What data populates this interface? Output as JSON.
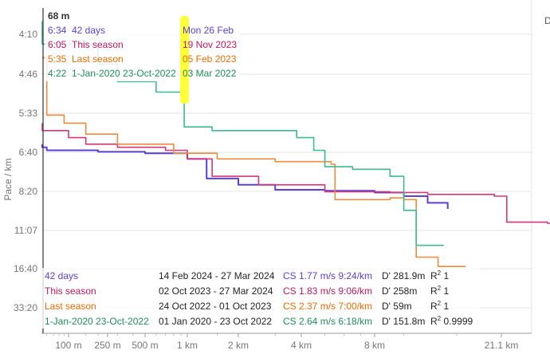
{
  "chart_data": {
    "type": "line",
    "ylabel": "Pace / km",
    "y_ticks": [
      "4:10",
      "4:46",
      "5:33",
      "6:40",
      "8:20",
      "11:07",
      "16:40",
      "33:20"
    ],
    "x_ticks": [
      "100 m",
      "250 m",
      "500 m",
      "1 km",
      "2 km",
      "4 km",
      "8 km",
      "21.1 km"
    ],
    "x_unit": "m",
    "x_scale": "log",
    "y_scale": "speed (pace shown inverted)",
    "grid": true,
    "series": [
      {
        "name": "42 days",
        "color": "#5c3fd6",
        "points": [
          [
            40,
            6.4
          ],
          [
            45,
            6.5
          ],
          [
            60,
            6.6
          ],
          [
            100,
            6.6
          ],
          [
            200,
            6.65
          ],
          [
            500,
            6.7
          ],
          [
            800,
            6.7
          ],
          [
            1000,
            6.9
          ],
          [
            1300,
            7.7
          ],
          [
            2000,
            8.0
          ],
          [
            3000,
            8.25
          ],
          [
            5000,
            8.3
          ],
          [
            8000,
            8.4
          ],
          [
            10000,
            8.6
          ],
          [
            12000,
            9.0
          ],
          [
            14000,
            9.4
          ]
        ]
      },
      {
        "name": "This season",
        "color": "#d8357b",
        "points": [
          [
            40,
            5.8
          ],
          [
            50,
            6.0
          ],
          [
            70,
            6.0
          ],
          [
            100,
            6.2
          ],
          [
            150,
            6.4
          ],
          [
            300,
            6.5
          ],
          [
            700,
            6.6
          ],
          [
            1000,
            6.9
          ],
          [
            1400,
            7.6
          ],
          [
            2500,
            8.0
          ],
          [
            5000,
            8.35
          ],
          [
            9000,
            8.4
          ],
          [
            12000,
            8.5
          ],
          [
            20000,
            8.6
          ],
          [
            22000,
            10.4
          ],
          [
            30000,
            10.5
          ],
          [
            38000,
            10.7
          ]
        ]
      },
      {
        "name": "Last season",
        "color": "#f08a3c",
        "points": [
          [
            40,
            4.5
          ],
          [
            60,
            5.6
          ],
          [
            90,
            5.8
          ],
          [
            150,
            6.1
          ],
          [
            300,
            6.4
          ],
          [
            800,
            6.7
          ],
          [
            1500,
            6.9
          ],
          [
            3000,
            7.0
          ],
          [
            5000,
            7.0
          ],
          [
            5300,
            7.1
          ],
          [
            5500,
            8.8
          ],
          [
            9000,
            8.7
          ],
          [
            10000,
            8.8
          ],
          [
            11000,
            14.5
          ],
          [
            13000,
            16.2
          ],
          [
            16000,
            16.3
          ]
        ]
      },
      {
        "name": "1-Jan-2020 23-Oct-2022",
        "color": "#3dba8f",
        "points": [
          [
            40,
            4.0
          ],
          [
            45,
            4.3
          ],
          [
            200,
            4.6
          ],
          [
            300,
            4.9
          ],
          [
            600,
            5.1
          ],
          [
            900,
            5.1
          ],
          [
            950,
            5.9
          ],
          [
            1400,
            6.0
          ],
          [
            2500,
            6.0
          ],
          [
            3800,
            6.2
          ],
          [
            4500,
            6.6
          ],
          [
            5000,
            7.2
          ],
          [
            6500,
            7.3
          ],
          [
            9000,
            7.6
          ],
          [
            10000,
            9.5
          ],
          [
            11000,
            12.8
          ],
          [
            13500,
            12.9
          ]
        ]
      }
    ]
  },
  "tooltip": {
    "distance": "68 m",
    "rows": [
      {
        "pace": "6:34",
        "label": "42 days",
        "date": "Mon 26 Feb",
        "color": "#5c3fd6"
      },
      {
        "pace": "6:05",
        "label": "This season",
        "date": "19 Nov 2023",
        "color": "#c2185b"
      },
      {
        "pace": "5:35",
        "label": "Last season",
        "date": "05 Feb 2023",
        "color": "#ef6c00"
      },
      {
        "pace": "4:22",
        "label": "1-Jan-2020 23-Oct-2022",
        "date": "03 Mar 2022",
        "color": "#1e8e5a"
      }
    ]
  },
  "legend": [
    {
      "label": "42 days",
      "range": "14 Feb 2024 - 27 Mar 2024",
      "cs": "CS 1.77 m/s 9:24/km",
      "dprime": "D' 281.9m",
      "r2_label": "R",
      "r2": "1",
      "label_color": "#5c3fd6",
      "cs_color": "#5c3fd6"
    },
    {
      "label": "This season",
      "range": "02 Oct 2023 - 27 Mar 2024",
      "cs": "CS 1.83 m/s 9:06/km",
      "dprime": "D' 258m",
      "r2_label": "R",
      "r2": "1",
      "label_color": "#c2185b",
      "cs_color": "#c2185b"
    },
    {
      "label": "Last season",
      "range": "24 Oct 2022 - 01 Oct 2023",
      "cs": "CS 2.37 m/s 7:00/km",
      "dprime": "D' 59m",
      "r2_label": "R",
      "r2": "1",
      "label_color": "#ef6c00",
      "cs_color": "#ef6c00"
    },
    {
      "label": "1-Jan-2020 23-Oct-2022",
      "range": "01 Jan 2020 - 23 Oct 2022",
      "cs": "CS 2.64 m/s 6:18/km",
      "dprime": "D' 151.8m",
      "r2_label": "R",
      "r2": "0.9999",
      "label_color": "#1e8e5a",
      "cs_color": "#1e8e5a"
    }
  ],
  "corner_label": "D",
  "highlight_color": "#ffff3b"
}
